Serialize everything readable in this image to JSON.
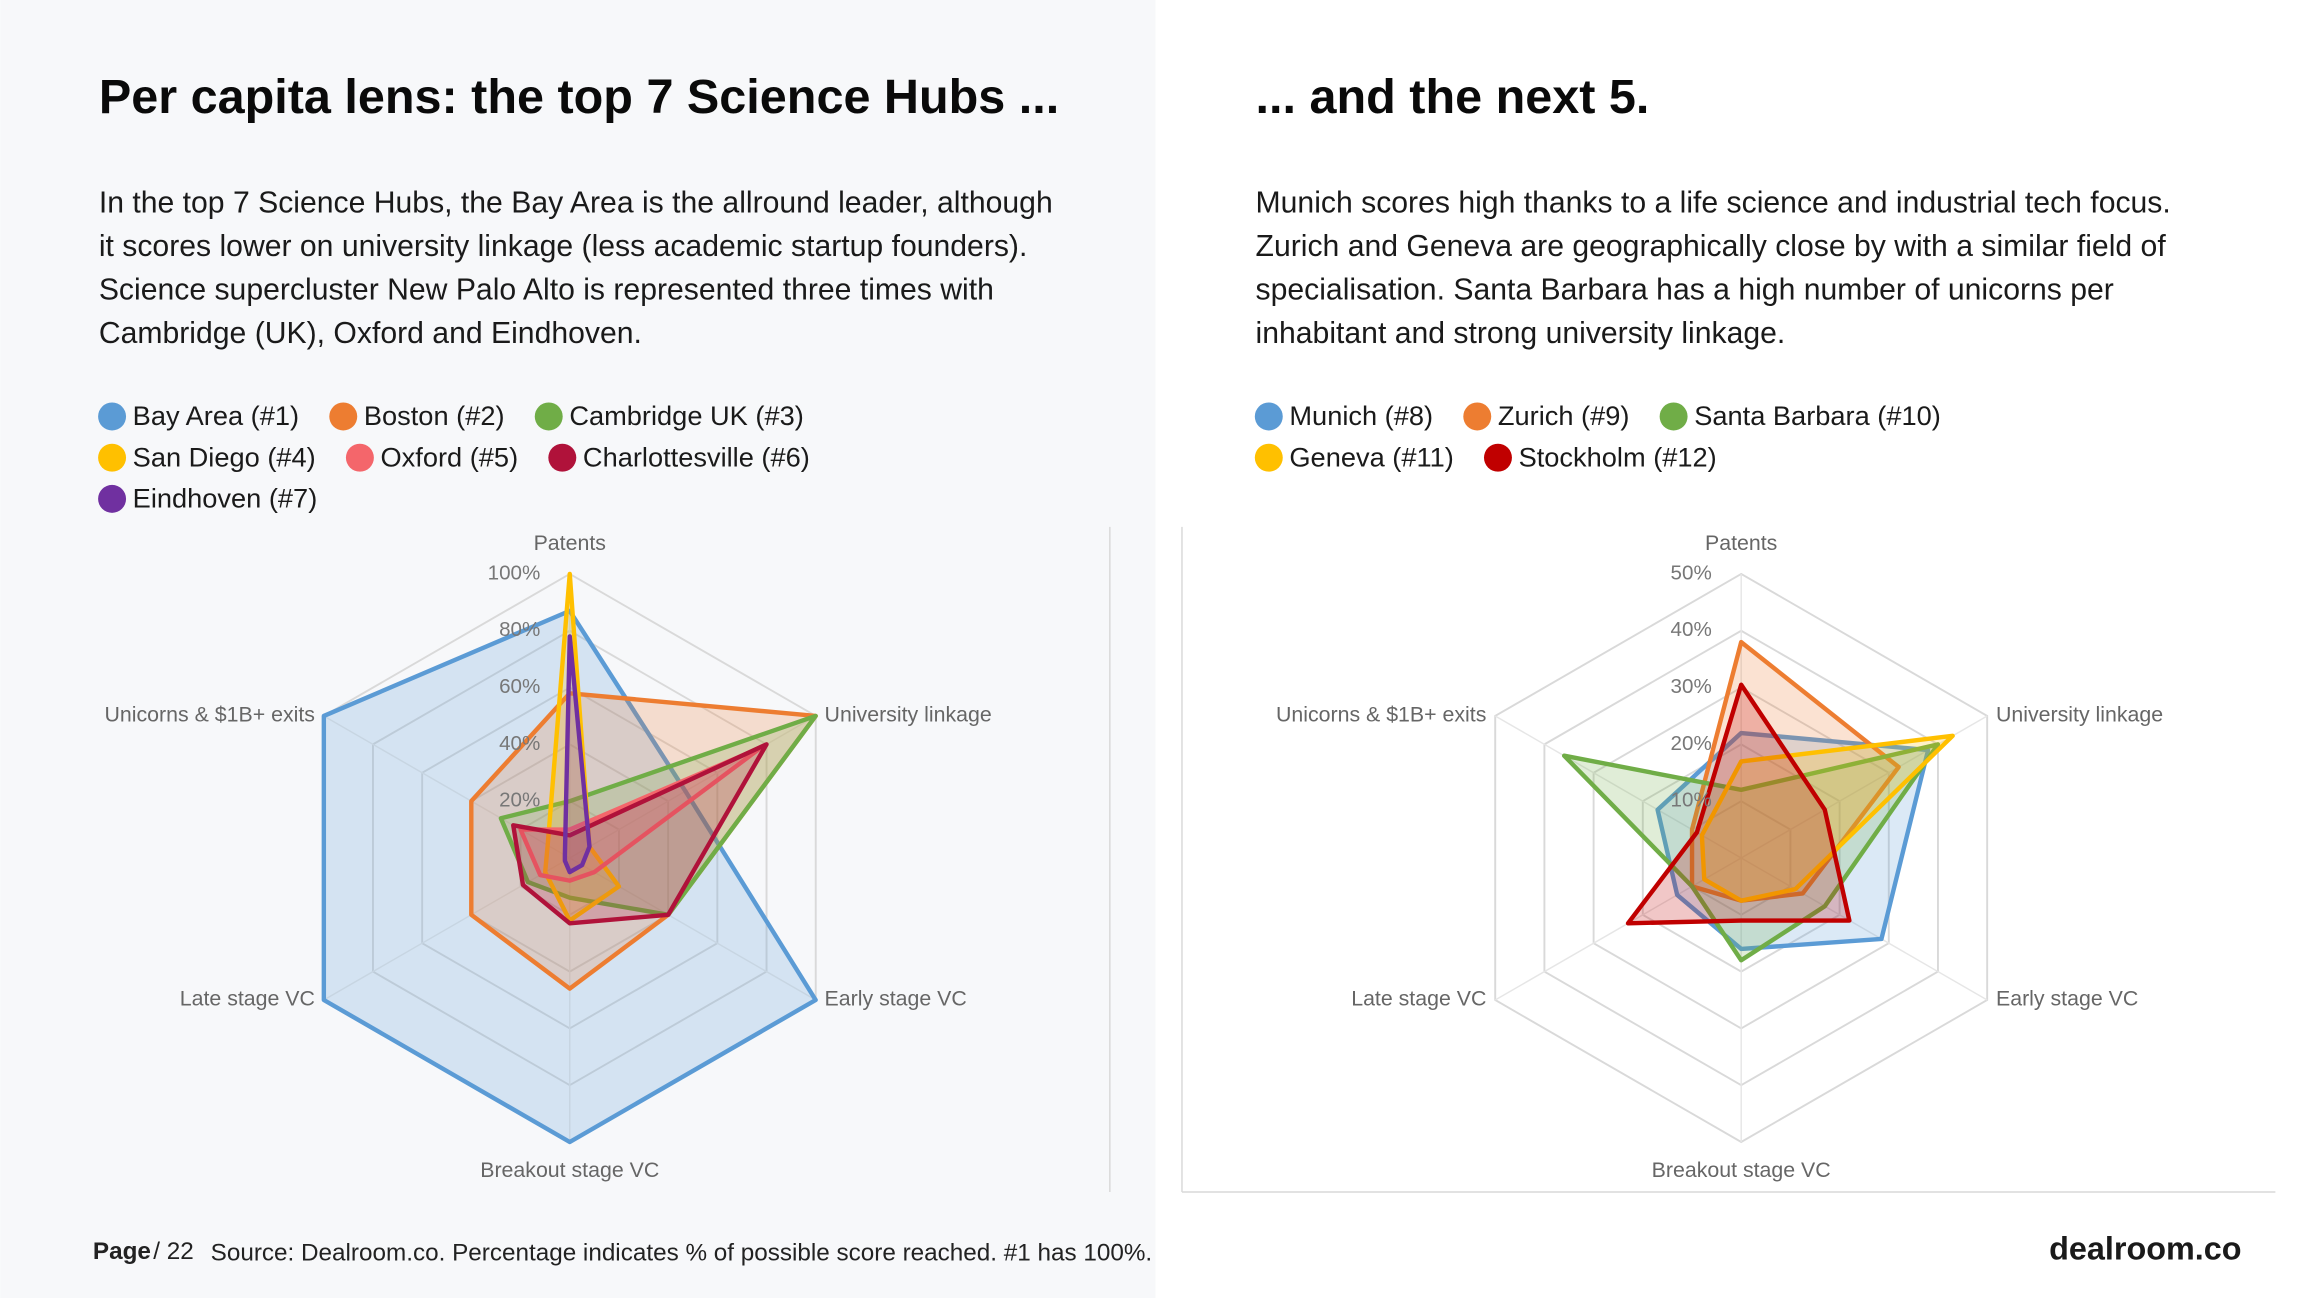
{
  "left": {
    "title": "Per capita lens: the top 7 Science Hubs ...",
    "body": [
      "In the top 7 Science Hubs, the Bay Area is the allround leader, although",
      "it scores lower on university linkage (less academic startup founders).",
      "Science supercluster New Palo Alto is represented three times with",
      "Cambridge (UK), Oxford and Eindhoven."
    ]
  },
  "right": {
    "title": "... and the next 5.",
    "body": [
      "Munich scores high thanks to a life science and industrial tech focus.",
      "Zurich and Geneva are geographically close by with a similar field of",
      "specialisation. Santa Barbara has a high number of unicorns per",
      "inhabitant and strong university linkage."
    ]
  },
  "footer": {
    "page_label": "Page",
    "page_number": "/ 22",
    "source": "Source: Dealroom.co. Percentage indicates % of possible score reached. #1 has 100%.",
    "logo": "dealroom.co"
  },
  "chart_data": [
    {
      "type": "radar",
      "categories": [
        "Patents",
        "University linkage",
        "Early stage VC",
        "Breakout stage VC",
        "Late stage VC",
        "Unicorns & $1B+ exits"
      ],
      "ylim": [
        0,
        100
      ],
      "yticks": [
        {
          "value": 20,
          "label": "20%"
        },
        {
          "value": 40,
          "label": "40%"
        },
        {
          "value": 60,
          "label": "60%"
        },
        {
          "value": 80,
          "label": "80%"
        },
        {
          "value": 100,
          "label": "100%"
        }
      ],
      "series": [
        {
          "name": "Bay Area (#1)",
          "color": "#5b9bd5",
          "values": [
            87,
            47,
            100,
            100,
            100,
            100
          ]
        },
        {
          "name": "Boston (#2)",
          "color": "#ed7d31",
          "values": [
            58,
            100,
            40,
            46,
            40,
            40
          ]
        },
        {
          "name": "Cambridge UK (#3)",
          "color": "#70ad47",
          "values": [
            20,
            100,
            40,
            14,
            17,
            28
          ]
        },
        {
          "name": "San Diego (#4)",
          "color": "#ffc000",
          "values": [
            100,
            8,
            20,
            22,
            10,
            9
          ]
        },
        {
          "name": "Oxford (#5)",
          "color": "#f4666b",
          "values": [
            10,
            78,
            10,
            8,
            12,
            20
          ]
        },
        {
          "name": "Charlottesville (#6)",
          "color": "#b0123a",
          "values": [
            8,
            80,
            40,
            23,
            19,
            23
          ]
        },
        {
          "name": "Eindhoven (#7)",
          "color": "#7030a0",
          "values": [
            78,
            8,
            5,
            5,
            2,
            2
          ]
        }
      ]
    },
    {
      "type": "radar",
      "categories": [
        "Patents",
        "University linkage",
        "Early stage VC",
        "Breakout stage VC",
        "Late stage VC",
        "Unicorns & $1B+ exits"
      ],
      "ylim": [
        0,
        50
      ],
      "yticks": [
        {
          "value": 10,
          "label": "10%"
        },
        {
          "value": 20,
          "label": "20%"
        },
        {
          "value": 30,
          "label": "30%"
        },
        {
          "value": 40,
          "label": "40%"
        },
        {
          "value": 50,
          "label": "50%"
        }
      ],
      "series": [
        {
          "name": "Munich (#8)",
          "color": "#5b9bd5",
          "values": [
            22,
            38,
            28.5,
            16,
            13,
            17
          ]
        },
        {
          "name": "Zurich (#9)",
          "color": "#ed7d31",
          "values": [
            38,
            32,
            12.5,
            7.5,
            10,
            10
          ]
        },
        {
          "name": "Santa Barbara (#10)",
          "color": "#70ad47",
          "values": [
            12,
            40,
            17,
            18,
            10,
            36
          ]
        },
        {
          "name": "Geneva (#11)",
          "color": "#ffc000",
          "values": [
            17,
            43,
            11,
            7.5,
            7.5,
            8
          ]
        },
        {
          "name": "Stockholm (#12)",
          "color": "#c00000",
          "values": [
            30.5,
            17,
            22,
            11,
            23,
            9
          ]
        }
      ]
    }
  ]
}
